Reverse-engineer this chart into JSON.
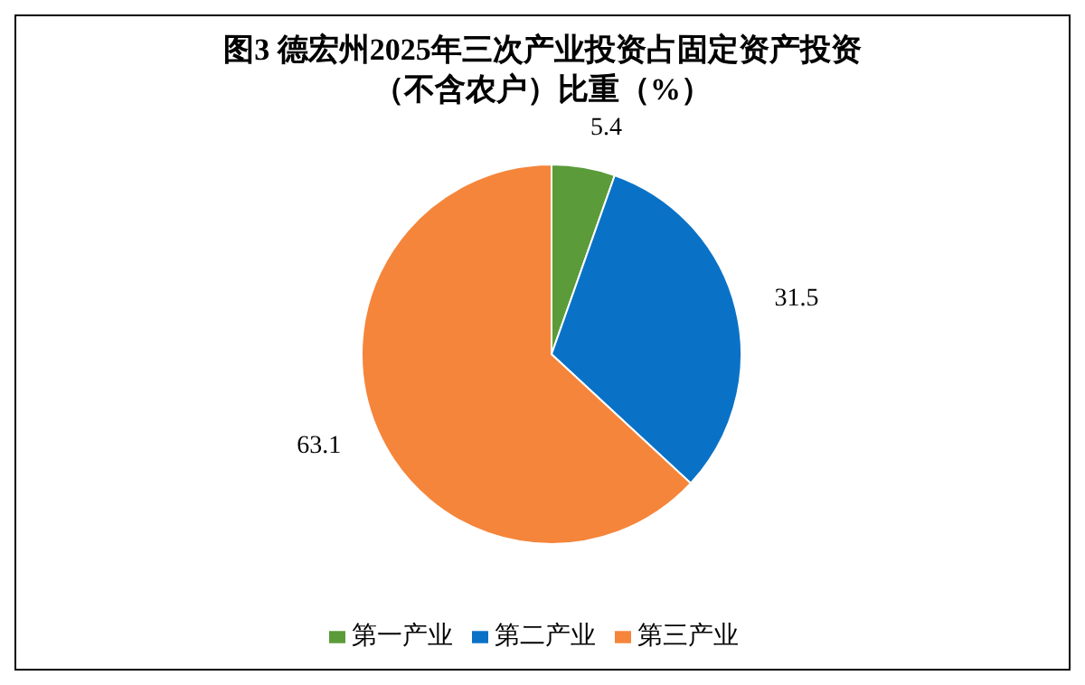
{
  "chart_data": {
    "type": "pie",
    "title": "图3 德宏州2025年三次产业投资占固定资产投资",
    "subtitle": "（不含农户）比重（%）",
    "categories": [
      "第一产业",
      "第二产业",
      "第三产业"
    ],
    "values": [
      5.4,
      31.5,
      63.1
    ],
    "colors": [
      "#5b9b3a",
      "#0a72c6",
      "#f5853a"
    ],
    "data_labels": true,
    "legend": "bottom"
  }
}
